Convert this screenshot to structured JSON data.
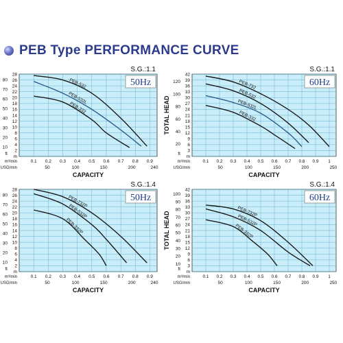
{
  "page_title": "PEB Type  PERFORMANCE CURVE",
  "colors": {
    "title": "#2b3a8c",
    "plot_bg": "#c9eef9",
    "grid": "#5aa9c9",
    "curve": "#1a1a1a",
    "blue_curve": "#2d5f8a",
    "freq": "#1d3f8a"
  },
  "chart_data": [
    {
      "type": "line",
      "frequency": "50Hz",
      "sg": "S.G.:1.1",
      "ylabel": "TOTAL HEAD",
      "xlabel": "CAPACITY",
      "m_ticks": [
        "0.1",
        "0.2",
        "0.3",
        "0.4",
        "0.5",
        "0.6",
        "0.7",
        "0.8",
        "0.9"
      ],
      "usg_ticks": [
        "50",
        "100",
        "150",
        "200",
        "240"
      ],
      "m_unit": "m³/min",
      "usg_unit": "USG/min",
      "ylim": [
        0,
        28
      ],
      "yticks_m": [
        0,
        2,
        4,
        6,
        8,
        10,
        12,
        14,
        16,
        18,
        20,
        22,
        24,
        26,
        28
      ],
      "yticks_ft": [
        "10",
        "20",
        "30",
        "40",
        "50",
        "60",
        "70",
        "80"
      ],
      "xlim": [
        0,
        0.95
      ],
      "series": [
        {
          "name": "PEB-532",
          "points": [
            [
              0.1,
              27.5
            ],
            [
              0.3,
              26
            ],
            [
              0.5,
              21.5
            ],
            [
              0.7,
              13
            ],
            [
              0.88,
              3.5
            ]
          ]
        },
        {
          "name": "PEB-532L",
          "blue": true,
          "points": [
            [
              0.1,
              25.5
            ],
            [
              0.3,
              21.5
            ],
            [
              0.5,
              16
            ],
            [
              0.7,
              9
            ],
            [
              0.84,
              3.5
            ]
          ]
        },
        {
          "name": "PEB-332",
          "points": [
            [
              0.1,
              20.5
            ],
            [
              0.3,
              18.5
            ],
            [
              0.5,
              12.5
            ],
            [
              0.6,
              8
            ],
            [
              0.76,
              3
            ]
          ]
        }
      ]
    },
    {
      "type": "line",
      "frequency": "60Hz",
      "sg": "S.G.:1.1",
      "ylabel": "TOTAL HEAD",
      "xlabel": "CAPACITY",
      "m_ticks": [
        "0.1",
        "0.2",
        "0.3",
        "0.4",
        "0.5",
        "0.6",
        "0.7",
        "0.8",
        "0.9",
        "1"
      ],
      "usg_ticks": [
        "50",
        "100",
        "150",
        "200",
        "250"
      ],
      "m_unit": "m³/min",
      "usg_unit": "USG/min",
      "ylim": [
        0,
        42
      ],
      "yticks_m": [
        0,
        3,
        6,
        9,
        12,
        15,
        18,
        21,
        24,
        27,
        30,
        33,
        36,
        39,
        42
      ],
      "yticks_ft": [
        "20",
        "40",
        "60",
        "80",
        "100",
        "120"
      ],
      "xlim": [
        0,
        1.05
      ],
      "series": [
        {
          "name": "PEB-732",
          "points": [
            [
              0.1,
              41
            ],
            [
              0.3,
              38
            ],
            [
              0.5,
              32
            ],
            [
              0.7,
              24
            ],
            [
              0.85,
              16
            ],
            [
              1.0,
              5
            ]
          ]
        },
        {
          "name": "PEB-532",
          "points": [
            [
              0.1,
              37
            ],
            [
              0.3,
              33.5
            ],
            [
              0.5,
              27
            ],
            [
              0.7,
              17
            ],
            [
              0.85,
              7
            ]
          ]
        },
        {
          "name": "PEB-532L",
          "blue": true,
          "points": [
            [
              0.1,
              31
            ],
            [
              0.3,
              27.5
            ],
            [
              0.5,
              22
            ],
            [
              0.7,
              12
            ],
            [
              0.8,
              5
            ]
          ]
        },
        {
          "name": "PEB-332",
          "points": [
            [
              0.1,
              26
            ],
            [
              0.3,
              22.5
            ],
            [
              0.5,
              15.5
            ],
            [
              0.6,
              11
            ],
            [
              0.75,
              4
            ]
          ]
        }
      ]
    },
    {
      "type": "line",
      "frequency": "50Hz",
      "sg": "S.G.:1.4",
      "ylabel": "TOTAL HEAD",
      "xlabel": "CAPACITY",
      "m_ticks": [
        "0.1",
        "0.2",
        "0.3",
        "0.4",
        "0.5",
        "0.6",
        "0.7",
        "0.8",
        "0.9"
      ],
      "usg_ticks": [
        "50",
        "100",
        "150",
        "200",
        "240"
      ],
      "m_unit": "m³/min",
      "usg_unit": "USG/min",
      "ylim": [
        0,
        28
      ],
      "yticks_m": [
        0,
        2,
        4,
        6,
        8,
        10,
        12,
        14,
        16,
        18,
        20,
        22,
        24,
        26,
        28
      ],
      "yticks_ft": [
        "10",
        "20",
        "30",
        "40",
        "50",
        "60",
        "70",
        "80"
      ],
      "xlim": [
        0,
        0.95
      ],
      "series": [
        {
          "name": "PEB-732P",
          "points": [
            [
              0.1,
              28
            ],
            [
              0.3,
              25.5
            ],
            [
              0.5,
              20
            ],
            [
              0.7,
              12
            ],
            [
              0.88,
              3
            ]
          ]
        },
        {
          "name": "PEB-532P",
          "points": [
            [
              0.1,
              26.5
            ],
            [
              0.3,
              23
            ],
            [
              0.5,
              16
            ],
            [
              0.6,
              11
            ],
            [
              0.74,
              3
            ]
          ]
        },
        {
          "name": "PEB-332P",
          "points": [
            [
              0.1,
              21
            ],
            [
              0.3,
              18
            ],
            [
              0.45,
              11
            ],
            [
              0.55,
              6
            ],
            [
              0.6,
              2
            ]
          ]
        }
      ]
    },
    {
      "type": "line",
      "frequency": "60Hz",
      "sg": "S.G.:1.4",
      "ylabel": "TOTAL HEAD",
      "xlabel": "CAPACITY",
      "m_ticks": [
        "0.1",
        "0.2",
        "0.3",
        "0.4",
        "0.5",
        "0.6",
        "0.7",
        "0.8",
        "0.9",
        "1"
      ],
      "usg_ticks": [
        "50",
        "100",
        "150",
        "200",
        "250"
      ],
      "m_unit": "m³/min",
      "usg_unit": "USG/min",
      "ylim": [
        0,
        42
      ],
      "yticks_m": [
        0,
        3,
        6,
        9,
        12,
        15,
        18,
        21,
        24,
        27,
        30,
        33,
        36,
        39,
        42
      ],
      "yticks_ft": [
        "10",
        "20",
        "30",
        "40",
        "50",
        "60",
        "70",
        "80",
        "90",
        "100"
      ],
      "xlim": [
        0,
        1.05
      ],
      "series": [
        {
          "name": "PEB-732P",
          "points": [
            [
              0.1,
              34
            ],
            [
              0.3,
              32
            ],
            [
              0.5,
              26
            ],
            [
              0.7,
              15
            ],
            [
              0.88,
              3
            ]
          ]
        },
        {
          "name": "PEB-532P",
          "points": [
            [
              0.1,
              32
            ],
            [
              0.3,
              28
            ],
            [
              0.5,
              21
            ],
            [
              0.7,
              10
            ],
            [
              0.86,
              3
            ]
          ]
        },
        {
          "name": "PEB-332P",
          "points": [
            [
              0.1,
              26.5
            ],
            [
              0.3,
              23
            ],
            [
              0.45,
              15
            ],
            [
              0.55,
              9
            ],
            [
              0.62,
              3
            ]
          ]
        }
      ]
    }
  ]
}
